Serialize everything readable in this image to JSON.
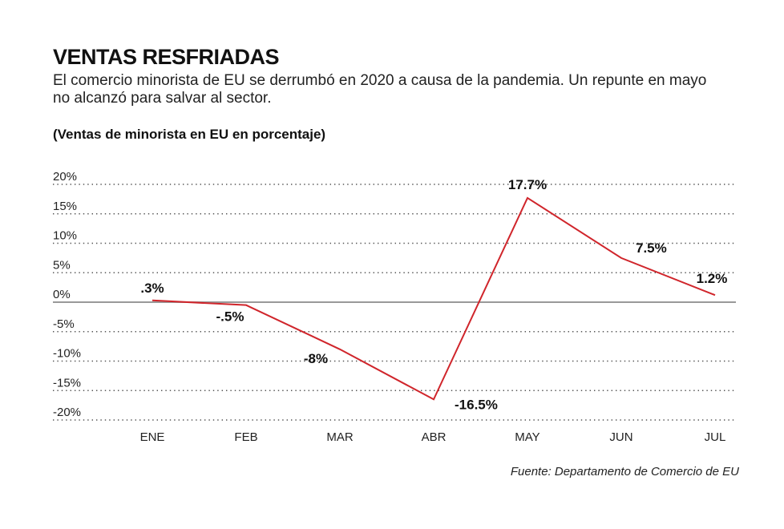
{
  "header": {
    "title": "VENTAS RESFRIADAS",
    "subtitle": "El comercio minorista de EU se derrumbó en 2020 a causa de la pandemia. Un repunte en mayo no alcanzó para salvar al sector.",
    "unit_label": "(Ventas de minorista en EU en porcentaje)"
  },
  "footer": {
    "source": "Fuente: Departamento de Comercio de EU"
  },
  "chart_data": {
    "type": "line",
    "title": "VENTAS RESFRIADAS",
    "ylabel": "(Ventas de minorista en EU en porcentaje)",
    "categories": [
      "ENE",
      "FEB",
      "MAR",
      "ABR",
      "MAY",
      "JUN",
      "JUL"
    ],
    "series": [
      {
        "values": [
          0.3,
          -0.5,
          -8,
          -16.5,
          17.7,
          7.5,
          1.2
        ],
        "data_labels": [
          ".3%",
          "-.5%",
          "-8%",
          "-16.5%",
          "17.7%",
          "7.5%",
          "1.2%"
        ],
        "color": "#d0252b"
      }
    ],
    "ylim": [
      -20,
      20
    ],
    "yticks": [
      20,
      15,
      10,
      5,
      0,
      -5,
      -10,
      -15,
      -20
    ],
    "ytick_labels": [
      "20%",
      "15%",
      "10%",
      "5%",
      "0%",
      "-5%",
      "-10%",
      "-15%",
      "-20%"
    ],
    "grid": "dotted horizontal",
    "zero_line_color": "#999999",
    "legend": "none"
  }
}
